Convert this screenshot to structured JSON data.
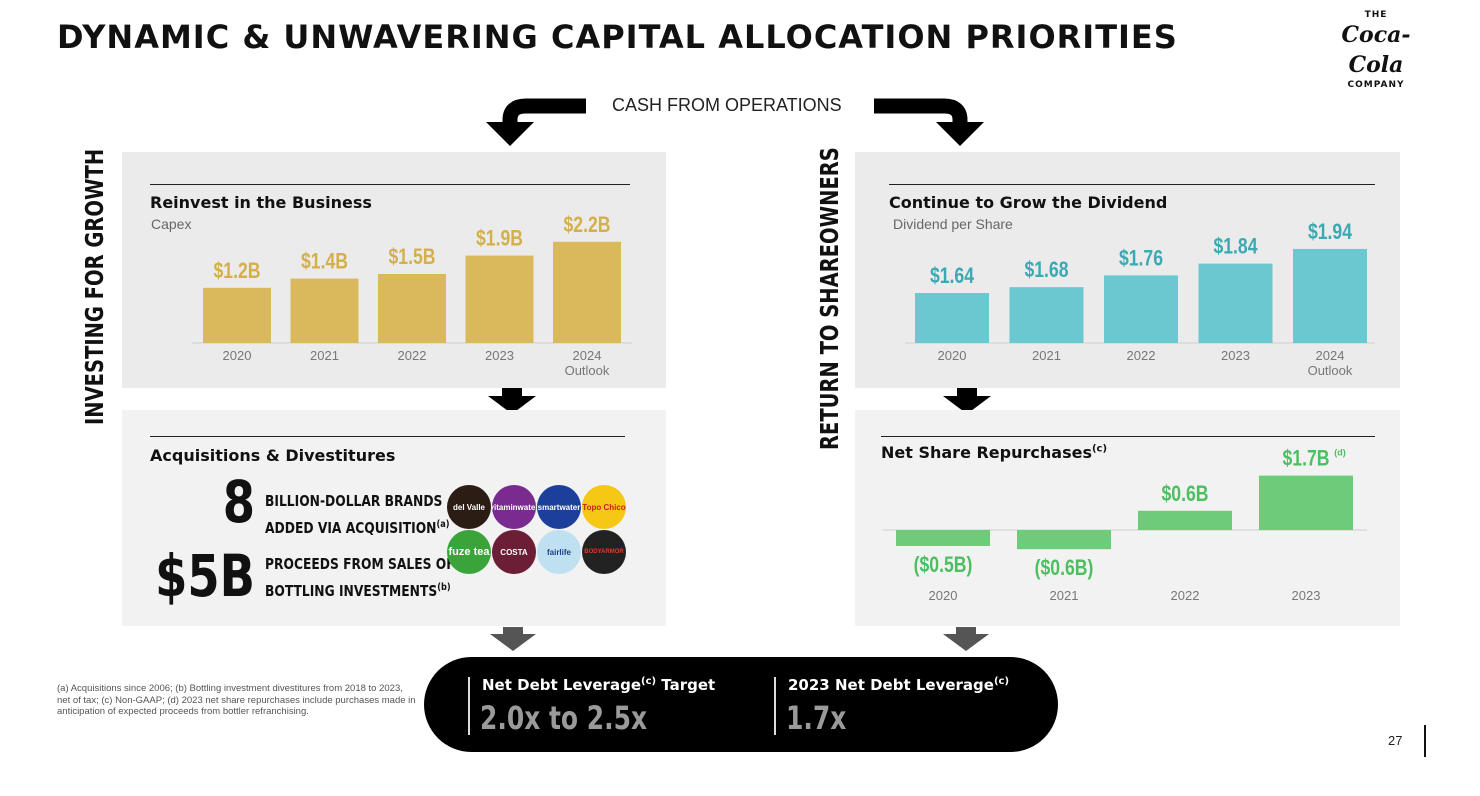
{
  "title": "DYNAMIC & UNWAVERING CAPITAL ALLOCATION PRIORITIES",
  "logo": {
    "top": "THE",
    "script": "Coca-Cola",
    "bottom": "COMPANY"
  },
  "flow_label": "CASH FROM OPERATIONS",
  "side_labels": {
    "left": "INVESTING FOR GROWTH",
    "right": "RETURN TO SHAREOWNERS"
  },
  "panels": {
    "capex": {
      "title": "Reinvest in the Business",
      "subtitle": "Capex"
    },
    "dividend": {
      "title": "Continue to Grow the Dividend",
      "subtitle": "Dividend per Share"
    },
    "acquisitions": {
      "title": "Acquisitions & Divestitures"
    },
    "repurchases": {
      "title": "Net Share Repurchases",
      "title_sup": "(c)"
    }
  },
  "stats": {
    "brands_num": "8",
    "brands_line1": "BILLION-DOLLAR BRANDS",
    "brands_line2": "ADDED VIA ACQUISITION",
    "brands_sup": "(a)",
    "proceeds_num": "$5B",
    "proceeds_line1": "PROCEEDS FROM SALES OF",
    "proceeds_line2": "BOTTLING INVESTMENTS",
    "proceeds_sup": "(b)"
  },
  "brands": [
    "del Valle",
    "vitaminwater",
    "smartwater",
    "Topo Chico",
    "fuze tea",
    "COSTA",
    "fairlife",
    "BODYARMOR"
  ],
  "chart_data": [
    {
      "type": "bar",
      "categories": [
        "2020",
        "2021",
        "2022",
        "2023",
        "2024 Outlook"
      ],
      "values": [
        1.2,
        1.4,
        1.5,
        1.9,
        2.2
      ],
      "data_labels": [
        "$1.2B",
        "$1.4B",
        "$1.5B",
        "$1.9B",
        "$2.2B"
      ],
      "title": "Reinvest in the Business",
      "subtitle": "Capex",
      "color": "#d9b95c",
      "label_color": "#d4b04a"
    },
    {
      "type": "bar",
      "categories": [
        "2020",
        "2021",
        "2022",
        "2023",
        "2024 Outlook"
      ],
      "values": [
        1.64,
        1.68,
        1.76,
        1.84,
        1.94
      ],
      "data_labels": [
        "$1.64",
        "$1.68",
        "$1.76",
        "$1.84",
        "$1.94"
      ],
      "title": "Continue to Grow the Dividend",
      "subtitle": "Dividend per Share",
      "color": "#6bc8d0",
      "label_color": "#3aa9b4"
    },
    {
      "type": "bar",
      "categories": [
        "2020",
        "2021",
        "2022",
        "2023"
      ],
      "values": [
        -0.5,
        -0.6,
        0.6,
        1.7
      ],
      "data_labels": [
        "($0.5B)",
        "($0.6B)",
        "$0.6B",
        "$1.7B"
      ],
      "data_label_notes": [
        "",
        "",
        "",
        "(d)"
      ],
      "title": "Net Share Repurchases",
      "color": "#6dcc7a",
      "label_color": "#4cbf60"
    }
  ],
  "leverage": {
    "target_label": "Net Debt Leverage",
    "target_sup": "(c)",
    "target_suffix": " Target",
    "target_value": "2.0x to 2.5x",
    "actual_label": "2023 Net Debt Leverage",
    "actual_sup": "(c)",
    "actual_value": "1.7x"
  },
  "footnote": "(a) Acquisitions since 2006; (b) Bottling investment divestitures from 2018 to 2023, net of tax; (c) Non-GAAP; (d) 2023 net share repurchases include purchases made in anticipation of expected proceeds from bottler refranchising.",
  "page_number": "27"
}
